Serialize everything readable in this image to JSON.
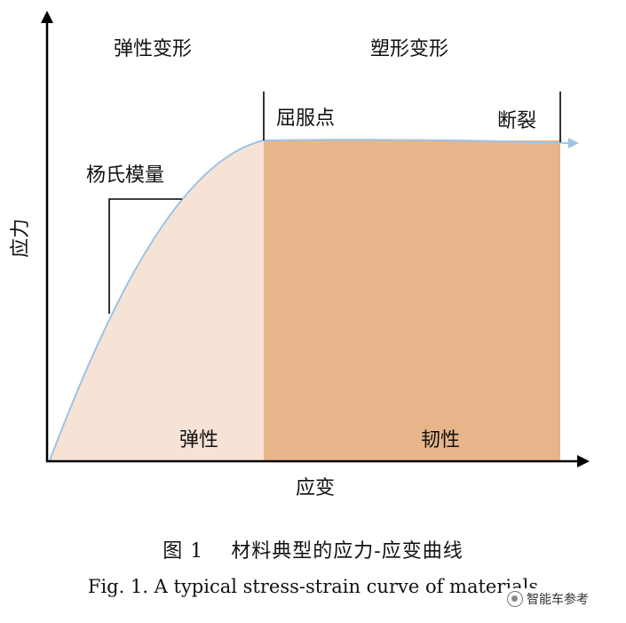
{
  "diagram": {
    "y_axis_label": "应力",
    "x_axis_label": "应变",
    "regions": {
      "elastic_deformation": "弹性变形",
      "plastic_deformation": "塑形变形",
      "elastic": "弹性",
      "toughness": "韧性"
    },
    "annotations": {
      "youngs_modulus": "杨氏模量",
      "yield_point": "屈服点",
      "fracture": "断裂"
    },
    "colors": {
      "elastic_fill": "#f6e3d6",
      "plastic_fill": "#e8b58a",
      "curve": "#9dc3e6",
      "axis": "#000000"
    }
  },
  "caption": {
    "chinese": "图 1 　材料典型的应力-应变曲线",
    "english": "Fig. 1. A typical stress-strain curve of materials"
  },
  "watermark": {
    "text": "智能车参考",
    "icon": "wechat-icon"
  }
}
